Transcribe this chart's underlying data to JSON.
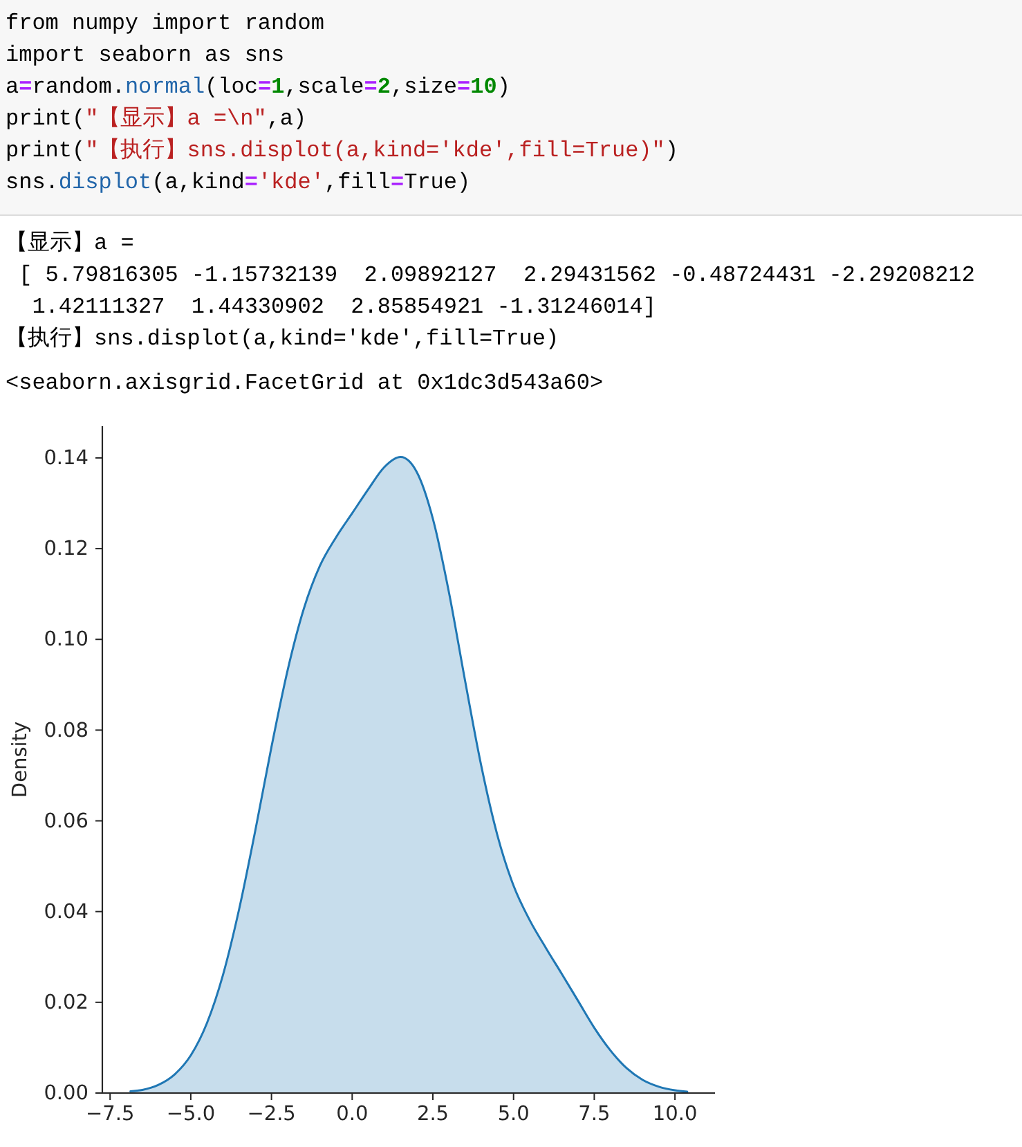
{
  "chart_data": {
    "type": "area",
    "annotations": [
      "from numpy import random",
      "import seaborn as sns",
      "a=random.normal(loc=1,scale=2,size=10)",
      "print(\"【显示】a =\\n\",a)",
      "print(\"【执行】sns.displot(a,kind='kde',fill=True)\")",
      "sns.displot(a,kind='kde',fill=True)",
      "【显示】a =",
      " [ 5.79816305 -1.15732139  2.09892127  2.29431562 -0.48724431 -2.29208212",
      "  1.42111327  1.44330902  2.85854921 -1.31246014]",
      "【执行】sns.displot(a,kind='kde',fill=True)",
      "<seaborn.axisgrid.FacetGrid at 0x1dc3d543a60>"
    ],
    "ylabel": "Density",
    "x": [
      -6.87,
      -6.5,
      -6,
      -5.5,
      -5,
      -4.5,
      -4,
      -3.5,
      -3,
      -2.5,
      -2,
      -1.5,
      -1,
      -0.5,
      0,
      0.5,
      1,
      1.5,
      2,
      2.5,
      3,
      3.5,
      4,
      4.5,
      5,
      5.5,
      6,
      6.5,
      7,
      7.5,
      8,
      8.5,
      9,
      9.5,
      10,
      10.38
    ],
    "series": [
      {
        "color": "#1f77b4",
        "values": [
          0.0004,
          0.0007,
          0.0018,
          0.0041,
          0.0083,
          0.0154,
          0.0261,
          0.0406,
          0.0579,
          0.0763,
          0.0932,
          0.1067,
          0.1162,
          0.1225,
          0.1278,
          0.1331,
          0.138,
          0.1402,
          0.1369,
          0.1266,
          0.1103,
          0.0908,
          0.0721,
          0.0568,
          0.0457,
          0.0381,
          0.032,
          0.0262,
          0.0203,
          0.0144,
          0.0094,
          0.0055,
          0.0029,
          0.0014,
          0.0006,
          0.0003
        ]
      }
    ],
    "xlim": [
      -7.74,
      11.24
    ],
    "ylim": [
      0,
      0.147
    ],
    "xticks": [
      {
        "value": -7.5,
        "label": "−7.5"
      },
      {
        "value": -5,
        "label": "−5.0"
      },
      {
        "value": -2.5,
        "label": "−2.5"
      },
      {
        "value": 0,
        "label": "0.0"
      },
      2.5,
      {
        "value": 5,
        "label": "5.0"
      },
      7.5,
      {
        "value": 10,
        "label": "10.0"
      }
    ],
    "yticks": [
      {
        "value": 0,
        "label": "0.00"
      },
      0.02,
      0.04,
      0.06,
      0.08,
      {
        "value": 0.1,
        "label": "0.10"
      },
      0.12,
      0.14
    ]
  }
}
